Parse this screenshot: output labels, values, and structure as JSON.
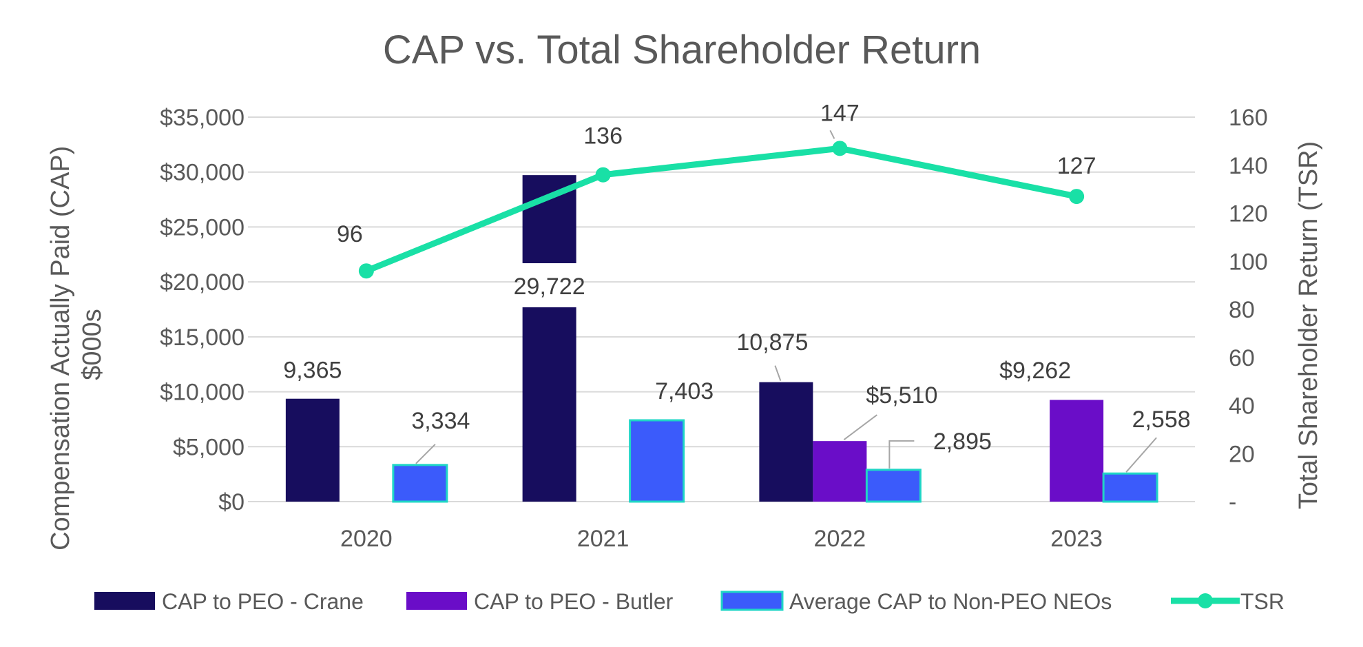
{
  "chart_data": {
    "type": "bar",
    "title": "CAP vs. Total Shareholder Return",
    "categories": [
      "2020",
      "2021",
      "2022",
      "2023"
    ],
    "ylabel": "Compensation Actually Paid (CAP) $000s",
    "y2label": "Total Shareholder Return (TSR)",
    "ylim": [
      0,
      35000
    ],
    "yticks": [
      "$0",
      "$5,000",
      "$10,000",
      "$15,000",
      "$20,000",
      "$25,000",
      "$30,000",
      "$35,000"
    ],
    "y2lim": [
      0,
      160
    ],
    "y2ticks": [
      "-",
      "20",
      "40",
      "60",
      "80",
      "100",
      "120",
      "140",
      "160"
    ],
    "grid": true,
    "legend_position": "bottom",
    "series": [
      {
        "name": "CAP to PEO - Crane",
        "type": "bar",
        "color": "#170d5e",
        "values": [
          9365,
          29722,
          10875,
          null
        ],
        "labels": [
          "9,365",
          "29,722",
          "10,875",
          ""
        ]
      },
      {
        "name": "CAP to PEO - Butler",
        "type": "bar",
        "color": "#6a0dc8",
        "values": [
          null,
          null,
          5510,
          9262
        ],
        "labels": [
          "",
          "",
          "$5,510",
          "$9,262"
        ]
      },
      {
        "name": "Average CAP to Non-PEO NEOs",
        "type": "bar",
        "color": "#3b5bfb",
        "border": "#1fd6c6",
        "values": [
          3334,
          7403,
          2895,
          2558
        ],
        "labels": [
          "3,334",
          "7,403",
          "2,895",
          "2,558"
        ]
      },
      {
        "name": "TSR",
        "type": "line",
        "axis": "y2",
        "color": "#19e0a6",
        "values": [
          96,
          136,
          147,
          127
        ],
        "labels": [
          "96",
          "136",
          "147",
          "127"
        ]
      }
    ]
  }
}
